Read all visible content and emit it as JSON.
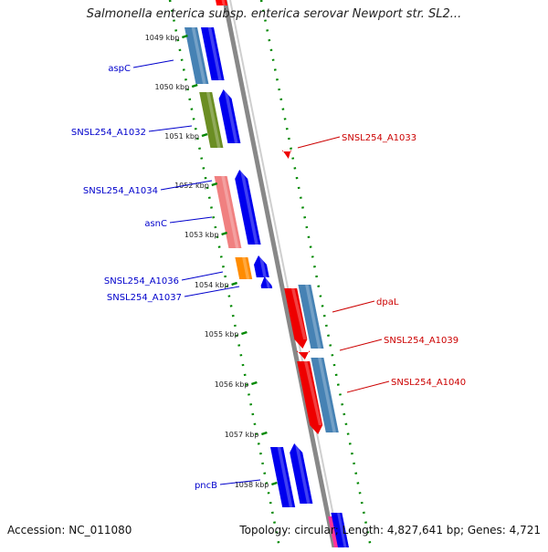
{
  "title": "Salmonella enterica subsp. enterica serovar Newport str. SL2...",
  "footer": {
    "accession": "Accession: NC_011080",
    "summary": "Topology: circular; Length: 4,827,641 bp; Genes: 4,721"
  },
  "colors": {
    "forward_label": "#0000cc",
    "reverse_label": "#cc0000",
    "backbone": "#888888",
    "tick": "#008800",
    "blue": "#0000ee",
    "steelblue": "#4682b4",
    "olive": "#6b8e23",
    "pink": "#f08080",
    "orange": "#ff8c00",
    "red": "#ee0000"
  },
  "scale_ticks": [
    "1049 kbp",
    "1050 kbp",
    "1051 kbp",
    "1052 kbp",
    "1053 kbp",
    "1054 kbp",
    "1055 kbp",
    "1056 kbp",
    "1057 kbp",
    "1058 kbp"
  ],
  "forward_labels": [
    "aspC",
    "SNSL254_A1032",
    "SNSL254_A1034",
    "asnC",
    "SNSL254_A1036",
    "SNSL254_A1037",
    "pncB"
  ],
  "reverse_labels": [
    "SNSL254_A1033",
    "dpaL",
    "SNSL254_A1039",
    "SNSL254_A1040"
  ]
}
